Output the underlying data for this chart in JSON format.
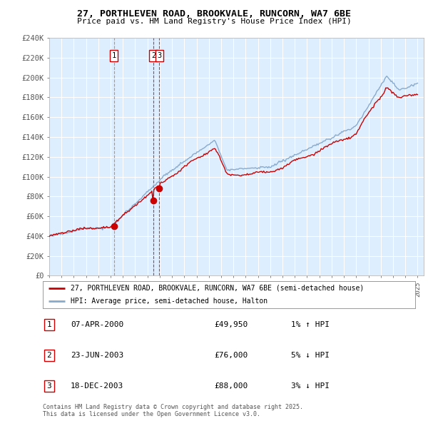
{
  "title": "27, PORTHLEVEN ROAD, BROOKVALE, RUNCORN, WA7 6BE",
  "subtitle": "Price paid vs. HM Land Registry's House Price Index (HPI)",
  "ylim": [
    0,
    240000
  ],
  "yticks": [
    0,
    20000,
    40000,
    60000,
    80000,
    100000,
    120000,
    140000,
    160000,
    180000,
    200000,
    220000,
    240000
  ],
  "ytick_labels": [
    "£0",
    "£20K",
    "£40K",
    "£60K",
    "£80K",
    "£100K",
    "£120K",
    "£140K",
    "£160K",
    "£180K",
    "£200K",
    "£220K",
    "£240K"
  ],
  "xlim_start": 1995.0,
  "xlim_end": 2025.5,
  "plot_bg_color": "#ddeeff",
  "fig_bg_color": "#ffffff",
  "grid_color": "#ffffff",
  "sale_points": [
    {
      "year": 2000.27,
      "price": 49950,
      "label": "1",
      "date": "07-APR-2000",
      "amount": "£49,950",
      "pct": "1% ↑ HPI",
      "vline_color": "#888888",
      "vline_style": "--"
    },
    {
      "year": 2003.48,
      "price": 76000,
      "label": "2",
      "date": "23-JUN-2003",
      "amount": "£76,000",
      "pct": "5% ↓ HPI",
      "vline_color": "#cc0000",
      "vline_style": "--"
    },
    {
      "year": 2003.96,
      "price": 88000,
      "label": "3",
      "date": "18-DEC-2003",
      "amount": "£88,000",
      "pct": "3% ↓ HPI",
      "vline_color": "#cc0000",
      "vline_style": "--"
    }
  ],
  "legend_entries": [
    "27, PORTHLEVEN ROAD, BROOKVALE, RUNCORN, WA7 6BE (semi-detached house)",
    "HPI: Average price, semi-detached house, Halton"
  ],
  "footnote": "Contains HM Land Registry data © Crown copyright and database right 2025.\nThis data is licensed under the Open Government Licence v3.0.",
  "line_color_red": "#cc0000",
  "line_color_blue": "#88aacc",
  "xticks": [
    1995,
    1996,
    1997,
    1998,
    1999,
    2000,
    2001,
    2002,
    2003,
    2004,
    2005,
    2006,
    2007,
    2008,
    2009,
    2010,
    2011,
    2012,
    2013,
    2014,
    2015,
    2016,
    2017,
    2018,
    2019,
    2020,
    2021,
    2022,
    2023,
    2024,
    2025
  ]
}
